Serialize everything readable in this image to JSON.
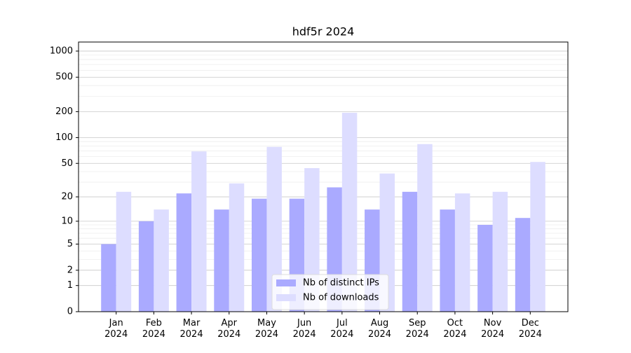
{
  "chart_data": {
    "type": "bar",
    "title": "hdf5r 2024",
    "categories": [
      "Jan 2024",
      "Feb 2024",
      "Mar 2024",
      "Apr 2024",
      "May 2024",
      "Jun 2024",
      "Jul 2024",
      "Aug 2024",
      "Sep 2024",
      "Oct 2024",
      "Nov 2024",
      "Dec 2024"
    ],
    "series": [
      {
        "name": "Nb of distinct IPs",
        "color": "#aaaaff",
        "values": [
          5,
          10,
          22,
          14,
          19,
          19,
          26,
          14,
          23,
          14,
          9,
          11
        ]
      },
      {
        "name": "Nb of downloads",
        "color": "#ddddff",
        "values": [
          23,
          14,
          69,
          29,
          78,
          44,
          194,
          38,
          84,
          22,
          23,
          52
        ]
      }
    ],
    "y_scale": "log1p",
    "ylim": [
      0,
      1272
    ],
    "yticks": [
      0,
      1,
      2,
      5,
      10,
      20,
      50,
      100,
      200,
      500,
      1000
    ],
    "grid": true,
    "legend": "lower center"
  }
}
